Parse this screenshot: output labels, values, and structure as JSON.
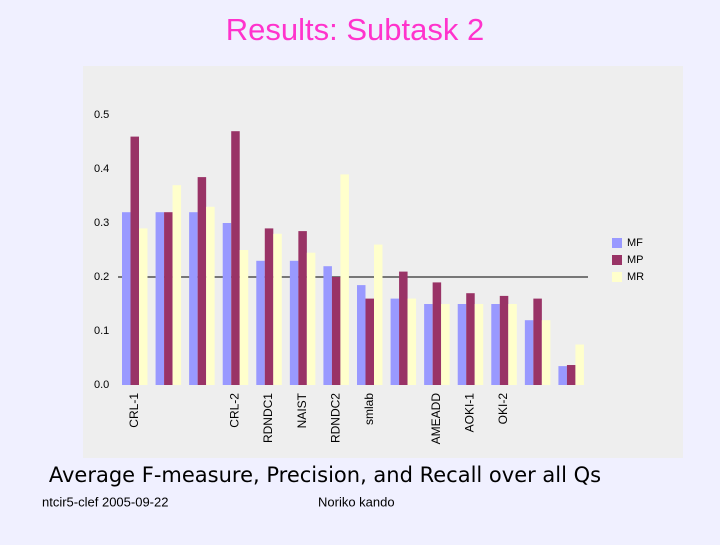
{
  "header": {
    "title": "Results: Subtask 2"
  },
  "chart_data": {
    "type": "bar",
    "categories": [
      "CRL-1",
      null,
      null,
      "CRL-2",
      "RDNDC1",
      "NAIST",
      "RDNDC2",
      "smlab",
      null,
      "AMEADD",
      "AOKI-1",
      "OKI-2",
      null,
      null
    ],
    "series": [
      {
        "name": "MF",
        "color": "#9999ff",
        "values": [
          0.32,
          0.32,
          0.32,
          0.3,
          0.23,
          0.23,
          0.22,
          0.185,
          0.16,
          0.15,
          0.15,
          0.15,
          0.12,
          0.035
        ]
      },
      {
        "name": "MP",
        "color": "#993366",
        "values": [
          0.46,
          0.32,
          0.385,
          0.47,
          0.29,
          0.285,
          0.2,
          0.16,
          0.21,
          0.19,
          0.17,
          0.165,
          0.16,
          0.037
        ]
      },
      {
        "name": "MR",
        "color": "#ffffcc",
        "values": [
          0.29,
          0.37,
          0.33,
          0.25,
          0.28,
          0.245,
          0.39,
          0.26,
          0.16,
          0.15,
          0.15,
          0.15,
          0.12,
          0.075
        ]
      }
    ],
    "ylim": [
      0,
      0.5
    ],
    "yticks": [
      {
        "value": 0,
        "label": "0.0"
      },
      {
        "value": 0.1,
        "label": "0.1"
      },
      {
        "value": 0.2,
        "label": "0.2"
      },
      {
        "value": 0.3,
        "label": "0.3"
      },
      {
        "value": 0.4,
        "label": "0.4"
      },
      {
        "value": 0.5,
        "label": "0.5"
      }
    ],
    "reference_line": 0.2,
    "legend": "right"
  },
  "caption": "Average F-measure, Precision, and Recall over all Qs",
  "footer": {
    "left": "ntcir5-clef 2005-09-22",
    "center": "Noriko kando"
  }
}
